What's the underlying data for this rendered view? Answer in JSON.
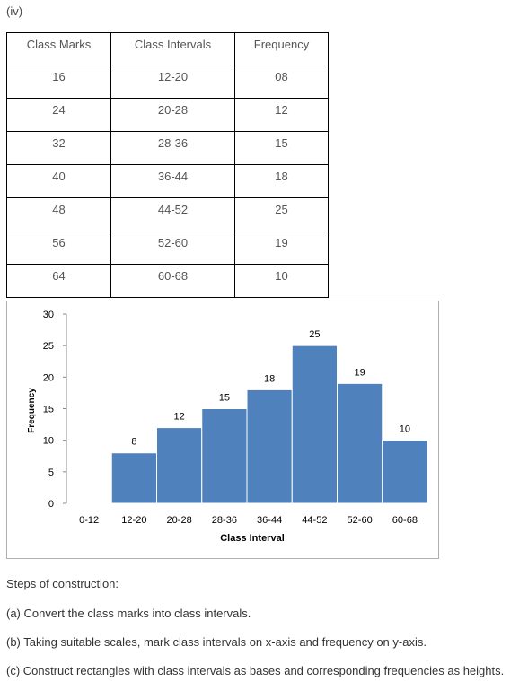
{
  "part_label": "(iv)",
  "table": {
    "headers": [
      "Class Marks",
      "Class Intervals",
      "Frequency"
    ],
    "rows": [
      [
        "16",
        "12-20",
        "08"
      ],
      [
        "24",
        "20-28",
        "12"
      ],
      [
        "32",
        "28-36",
        "15"
      ],
      [
        "40",
        "36-44",
        "18"
      ],
      [
        "48",
        "44-52",
        "25"
      ],
      [
        "56",
        "52-60",
        "19"
      ],
      [
        "64",
        "60-68",
        "10"
      ]
    ]
  },
  "chart_data": {
    "type": "bar",
    "categories": [
      "0-12",
      "12-20",
      "20-28",
      "28-36",
      "36-44",
      "44-52",
      "52-60",
      "60-68"
    ],
    "values": [
      0,
      8,
      12,
      15,
      18,
      25,
      19,
      10
    ],
    "data_labels": [
      "",
      "8",
      "12",
      "15",
      "18",
      "25",
      "19",
      "10"
    ],
    "xlabel": "Class Interval",
    "ylabel": "Frequency",
    "ylim": [
      0,
      30
    ],
    "yticks": [
      "0",
      "5",
      "10",
      "15",
      "20",
      "25",
      "30"
    ],
    "bar_color": "#4f81bd",
    "grid": false
  },
  "steps": {
    "heading": "Steps of construction:",
    "items": [
      "(a) Convert the class marks into class intervals.",
      "(b) Taking suitable scales, mark class intervals on x-axis and frequency on y-axis.",
      "(c) Construct rectangles with class intervals as bases and corresponding frequencies as heights."
    ]
  }
}
